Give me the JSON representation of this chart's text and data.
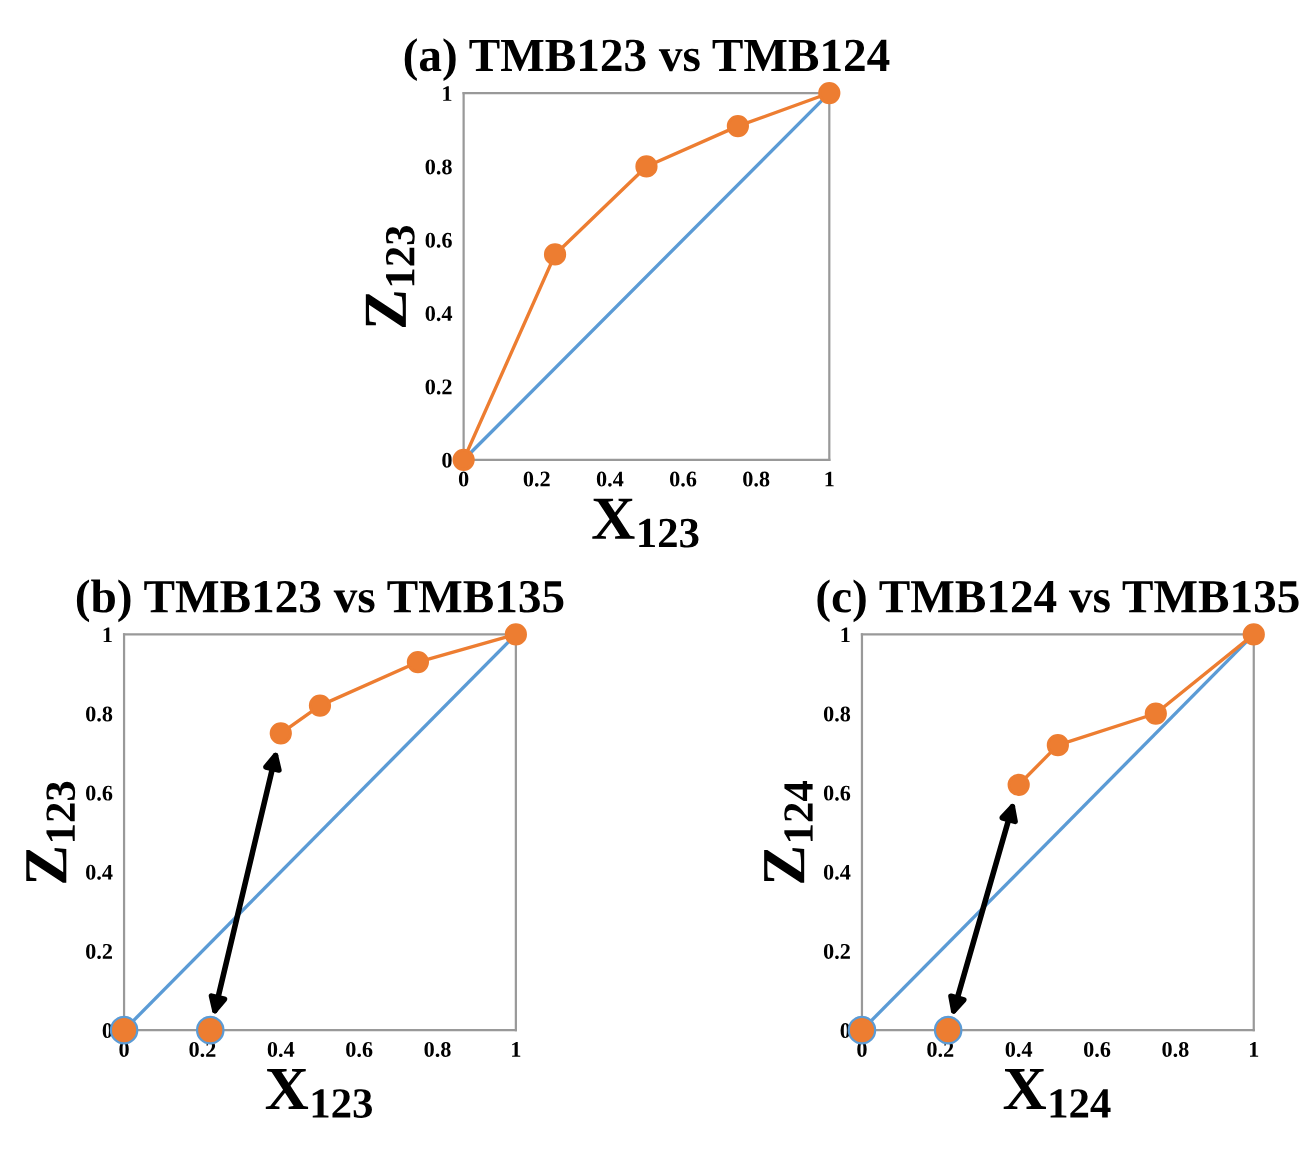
{
  "chart_data": [
    {
      "type": "line",
      "title": "(a) TMB123 vs TMB124",
      "xlabel": "X$_{123}$",
      "ylabel": "Z$_{123}$",
      "xlim": [
        0,
        1
      ],
      "ylim": [
        0,
        1
      ],
      "xticks": [
        0,
        0.2,
        0.4,
        0.6,
        0.8,
        1
      ],
      "yticks": [
        0,
        0.2,
        0.4,
        0.6,
        0.8,
        1
      ],
      "grid": false,
      "legend": false,
      "series": [
        {
          "color": "#5b9bd5",
          "x": [
            0,
            1
          ],
          "values": [
            0,
            1
          ],
          "marker": "none"
        },
        {
          "color": "#ed7d31",
          "x": [
            0,
            0.25,
            0.5,
            0.75,
            1
          ],
          "values": [
            0,
            0.56,
            0.8,
            0.91,
            1
          ],
          "marker": "circle"
        }
      ]
    },
    {
      "type": "line",
      "title": "(b) TMB123 vs TMB135",
      "xlabel": "X$_{123}$",
      "ylabel": "Z$_{123}$",
      "xlim": [
        0,
        1
      ],
      "ylim": [
        0,
        1
      ],
      "xticks": [
        0,
        0.2,
        0.4,
        0.6,
        0.8,
        1
      ],
      "yticks": [
        0,
        0.2,
        0.4,
        0.6,
        0.8,
        1
      ],
      "grid": false,
      "legend": false,
      "series": [
        {
          "color": "#5b9bd5",
          "x": [
            0,
            1
          ],
          "values": [
            0,
            1
          ],
          "marker": "none"
        },
        {
          "color": "#ed7d31",
          "x": [
            0.4,
            0.5,
            0.75,
            1
          ],
          "values": [
            0.75,
            0.82,
            0.93,
            1
          ],
          "marker": "circle"
        },
        {
          "type": "scatter",
          "color": "#ed7d31",
          "x": [
            0,
            0.22
          ],
          "values": [
            0,
            0
          ],
          "marker": "circle"
        }
      ]
    },
    {
      "type": "line",
      "title": "(c) TMB124 vs TMB135",
      "xlabel": "X$_{124}$",
      "ylabel": "Z$_{124}$",
      "xlim": [
        0,
        1
      ],
      "ylim": [
        0,
        1
      ],
      "xticks": [
        0,
        0.2,
        0.4,
        0.6,
        0.8,
        1
      ],
      "yticks": [
        0,
        0.2,
        0.4,
        0.6,
        0.8,
        1
      ],
      "grid": false,
      "legend": false,
      "series": [
        {
          "color": "#5b9bd5",
          "x": [
            0,
            1
          ],
          "values": [
            0,
            1
          ],
          "marker": "none"
        },
        {
          "color": "#ed7d31",
          "x": [
            0.4,
            0.5,
            0.75,
            1
          ],
          "values": [
            0.62,
            0.72,
            0.8,
            1
          ],
          "marker": "circle"
        },
        {
          "type": "scatter",
          "color": "#ed7d31",
          "x": [
            0,
            0.22
          ],
          "values": [
            0,
            0
          ],
          "marker": "circle"
        }
      ]
    }
  ]
}
